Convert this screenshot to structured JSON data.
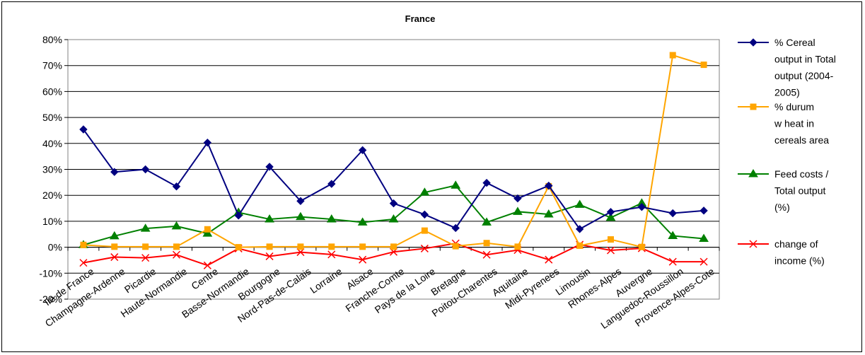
{
  "chart_data": {
    "type": "line",
    "title": "France",
    "categories": [
      "Ile de France",
      "Champagne-Ardenne",
      "Picardie",
      "Haute-Normandie",
      "Centre",
      "Basse-Normandie",
      "Bourgogne",
      "Nord-Pas-de-Calais",
      "Lorraine",
      "Alsace",
      "Franche-Comte",
      "Pays de la Loire",
      "Bretagne",
      "Poitou-Charentes",
      "Aquitaine",
      "Midi-Pyrenees",
      "Limousin",
      "Rhones-Alpes",
      "Auvergne",
      "Languedoc-Roussillon",
      "Provence-Alpes-Cote"
    ],
    "y_axis": {
      "min": -20,
      "max": 80,
      "step": 10,
      "tick_labels": [
        "-20%",
        "-10%",
        "0%",
        "10%",
        "20%",
        "30%",
        "40%",
        "50%",
        "60%",
        "70%",
        "80%"
      ]
    },
    "grid": "horizontal",
    "legend_position": "right",
    "series": [
      {
        "name": "% Cereal output in Total output  (2004-2005)",
        "legend_lines": [
          "% Cereal",
          "output in Total",
          "output  (2004-",
          "2005)"
        ],
        "color": "#000080",
        "marker": "diamond",
        "values": [
          45.4,
          29.0,
          30.0,
          23.4,
          40.3,
          12.2,
          31.0,
          17.8,
          24.4,
          37.4,
          16.9,
          12.6,
          7.4,
          24.8,
          18.8,
          23.7,
          7.0,
          13.6,
          15.5,
          13.1,
          14.1
        ]
      },
      {
        "name": "% durum w heat in cereals area",
        "legend_lines": [
          "% durum",
          "w heat in",
          "cereals area"
        ],
        "color": "#FFA500",
        "marker": "square",
        "values": [
          0.9,
          0.2,
          0.2,
          0.2,
          6.9,
          0.0,
          0.2,
          0.2,
          0.2,
          0.2,
          0.2,
          6.4,
          0.4,
          1.6,
          0.2,
          23.5,
          0.6,
          3.0,
          0.1,
          74.0,
          70.3
        ]
      },
      {
        "name": "Feed costs / Total output (%)",
        "legend_lines": [
          "Feed costs /",
          "Total output",
          "(%)"
        ],
        "color": "#008000",
        "marker": "triangle",
        "values": [
          0.9,
          4.3,
          7.2,
          8.1,
          5.3,
          13.4,
          10.8,
          11.7,
          10.8,
          9.6,
          10.8,
          21.1,
          23.8,
          9.6,
          13.7,
          12.7,
          16.4,
          11.4,
          17.0,
          4.4,
          3.3
        ]
      },
      {
        "name": "change of income (%)",
        "legend_lines": [
          "change of",
          "income (%)"
        ],
        "color": "#FF0000",
        "marker": "x",
        "values": [
          -6.0,
          -3.8,
          -4.1,
          -2.9,
          -7.0,
          -0.5,
          -3.5,
          -1.9,
          -2.8,
          -4.8,
          -1.8,
          -0.5,
          1.5,
          -2.9,
          -1.1,
          -4.8,
          1.0,
          -1.2,
          -0.4,
          -5.6,
          -5.6
        ]
      }
    ]
  }
}
